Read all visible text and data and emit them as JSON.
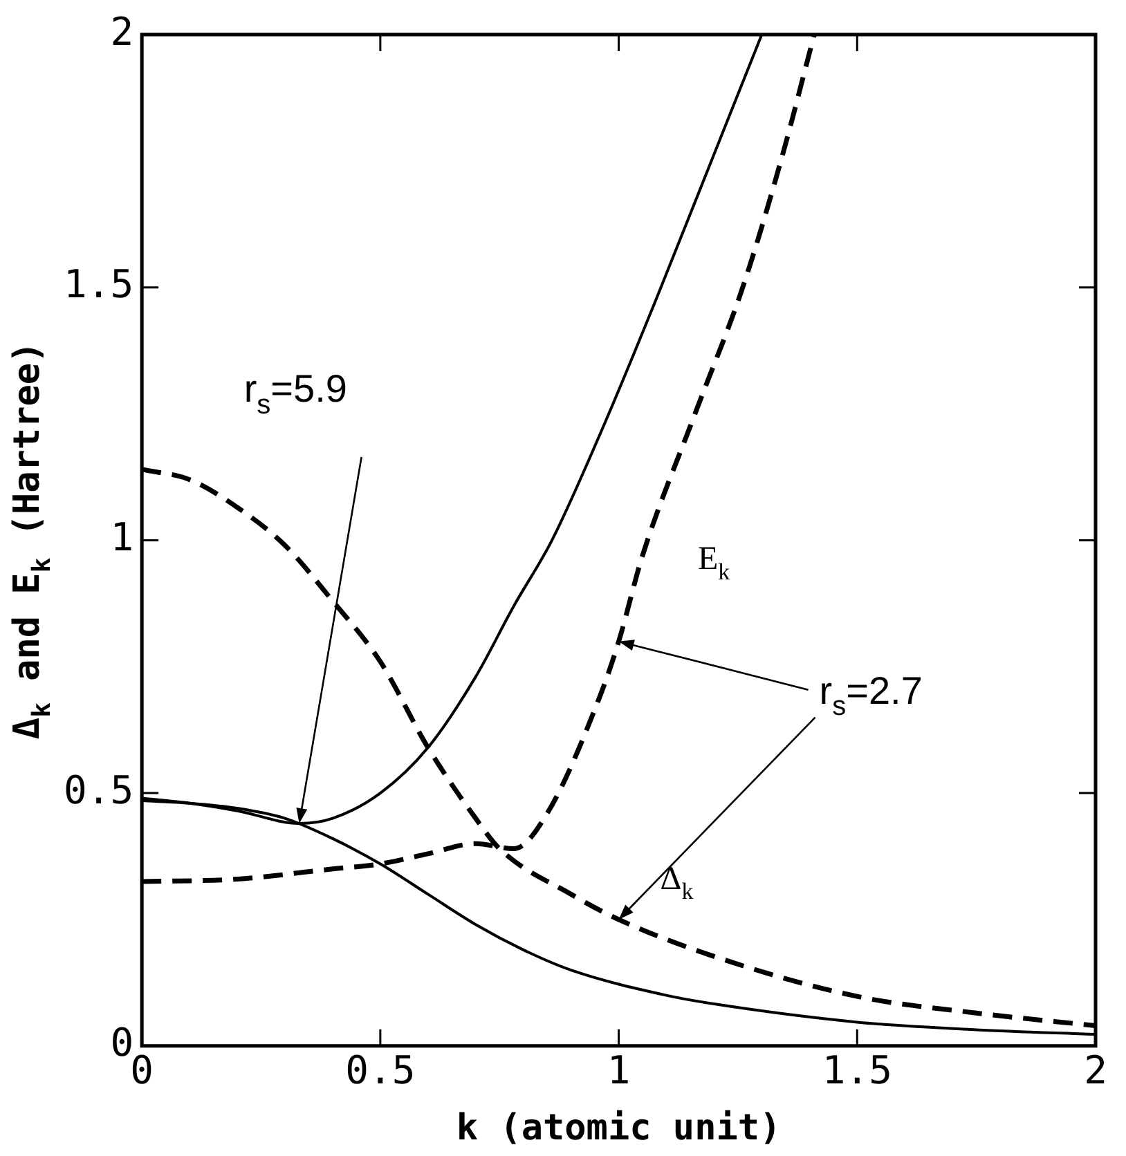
{
  "chart_data": {
    "type": "line",
    "xlabel": "k (atomic unit)",
    "ylabel": "Δ$_{k}$ and E$_{k}$ (Hartree)",
    "xlim": [
      0,
      2
    ],
    "ylim": [
      0,
      2
    ],
    "xticks": [
      0,
      0.5,
      1,
      1.5,
      2
    ],
    "yticks": [
      0,
      0.5,
      1,
      1.5,
      2
    ],
    "grid": false,
    "legend": false,
    "marker": "none",
    "annotations": [
      {
        "text": "r$_{s}$=5.9",
        "x": 0.33,
        "y": 0.44
      },
      {
        "text": "r$_{s}$=2.7",
        "x": 1,
        "y": 0.8
      }
    ],
    "series": [
      {
        "color": "#000000",
        "line_style": "solid",
        "x": [
          0,
          0.1,
          0.2,
          0.33,
          0.4,
          0.5,
          0.6,
          0.7,
          0.78,
          0.86,
          0.97,
          1.08,
          1.19,
          1.3
        ],
        "values": [
          0.49,
          0.48,
          0.465,
          0.44,
          0.45,
          0.5,
          0.59,
          0.73,
          0.87,
          1.0,
          1.23,
          1.48,
          1.74,
          2.0
        ]
      },
      {
        "color": "#000000",
        "line_style": "solid",
        "x": [
          0,
          0.1,
          0.2,
          0.3,
          0.4,
          0.5,
          0.6,
          0.7,
          0.8,
          0.9,
          1.1,
          1.2,
          1.5,
          1.75,
          2.0
        ],
        "values": [
          0.485,
          0.48,
          0.47,
          0.45,
          0.41,
          0.36,
          0.3,
          0.24,
          0.19,
          0.15,
          0.1,
          0.083,
          0.047,
          0.032,
          0.023
        ]
      },
      {
        "name": "E$_{k}$",
        "color": "#000000",
        "line_style": "dashed",
        "x": [
          0,
          0.2,
          0.4,
          0.5,
          0.6,
          0.7,
          0.78,
          0.85,
          0.96,
          1.0,
          1.05,
          1.16,
          1.26,
          1.34,
          1.41
        ],
        "values": [
          0.325,
          0.33,
          0.35,
          0.36,
          0.38,
          0.4,
          0.39,
          0.46,
          0.69,
          0.8,
          0.97,
          1.25,
          1.5,
          1.75,
          2.0
        ]
      },
      {
        "name": "Δ$_{k}$",
        "color": "#000000",
        "line_style": "dashed",
        "x": [
          0,
          0.1,
          0.2,
          0.3,
          0.4,
          0.5,
          0.6,
          0.7,
          0.75,
          0.9,
          1.0,
          1.2,
          1.5,
          1.75,
          2.0
        ],
        "values": [
          1.14,
          1.12,
          1.065,
          0.99,
          0.88,
          0.76,
          0.59,
          0.45,
          0.39,
          0.3,
          0.25,
          0.177,
          0.098,
          0.065,
          0.04
        ]
      }
    ]
  }
}
